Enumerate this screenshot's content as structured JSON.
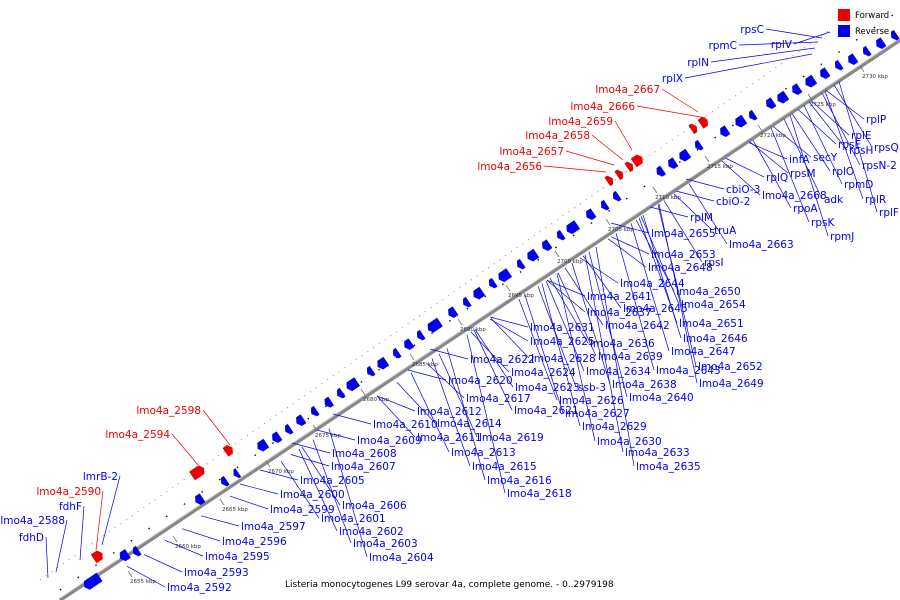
{
  "caption": "Listeria monocytogenes L99 serovar 4a, complete genome. - 0..2979198",
  "legend": [
    {
      "label": "Forward",
      "color": "#ee0000"
    },
    {
      "label": "Reverse",
      "color": "#0000ee"
    }
  ],
  "ticks": [
    "2655 kbp",
    "2660 kbp",
    "2665 kbp",
    "2670 kbp",
    "2675 kbp",
    "2680 kbp",
    "2685 kbp",
    "2690 kbp",
    "2695 kbp",
    "2700 kbp",
    "2705 kbp",
    "2710 kbp",
    "2715 kbp",
    "2720 kbp",
    "2725 kbp",
    "2730 kbp"
  ],
  "labels_forward": [
    "lmo4a_2667",
    "lmo4a_2666",
    "lmo4a_2659",
    "lmo4a_2658",
    "lmo4a_2657",
    "lmo4a_2656",
    "lmo4a_2598",
    "lmo4a_2594",
    "lmo4a_2590"
  ],
  "labels_reverse_upper": [
    "rplV",
    "rpsC",
    "rpmC",
    "rplN",
    "rplX",
    "lmrB-2",
    "fdhF",
    "lmo4a_2588",
    "fdhD"
  ],
  "labels_reverse": [
    "rplP",
    "rplE",
    "rpsH",
    "rpsQ",
    "rpsE",
    "secY",
    "rpsN-2",
    "infA",
    "rplO",
    "rpsM",
    "rpmD",
    "rplQ",
    "lmo4a_2668",
    "adk",
    "rplR",
    "cbiO-3",
    "rpoA",
    "rplF",
    "cbiO-2",
    "rpsK",
    "rpmJ",
    "rplM",
    "truA",
    "lmo4a_2655",
    "lmo4a_2663",
    "lmo4a_2653",
    "rpsI",
    "lmo4a_2648",
    "lmo4a_2644",
    "lmo4a_2650",
    "lmo4a_2641",
    "lmo4a_2654",
    "lmo4a_2637",
    "lmo4a_2645",
    "lmo4a_2651",
    "lmo4a_2631",
    "lmo4a_2642",
    "lmo4a_2625",
    "lmo4a_2636",
    "lmo4a_2646",
    "lmo4a_2622",
    "lmo4a_2628",
    "lmo4a_2639",
    "lmo4a_2647",
    "lmo4a_2624",
    "lmo4a_2634",
    "lmo4a_2643",
    "lmo4a_2652",
    "lmo4a_2620",
    "lmo4a_2623",
    "ssb-3",
    "lmo4a_2638",
    "lmo4a_2649",
    "lmo4a_2617",
    "lmo4a_2626",
    "lmo4a_2640",
    "lmo4a_2612",
    "lmo4a_2621",
    "lmo4a_2627",
    "lmo4a_2610",
    "lmo4a_2614",
    "lmo4a_2629",
    "lmo4a_2611",
    "lmo4a_2619",
    "lmo4a_2630",
    "lmo4a_2609",
    "lmo4a_2613",
    "lmo4a_2633",
    "lmo4a_2608",
    "lmo4a_2615",
    "lmo4a_2635",
    "lmo4a_2607",
    "lmo4a_2616",
    "lmo4a_2605",
    "lmo4a_2618",
    "lmo4a_2606",
    "lmo4a_2600",
    "lmo4a_2599",
    "lmo4a_2601",
    "lmo4a_2597",
    "lmo4a_2602",
    "lmo4a_2596",
    "lmo4a_2603",
    "lmo4a_2595",
    "lmo4a_2604",
    "lmo4a_2593",
    "lmo4a_2592"
  ]
}
